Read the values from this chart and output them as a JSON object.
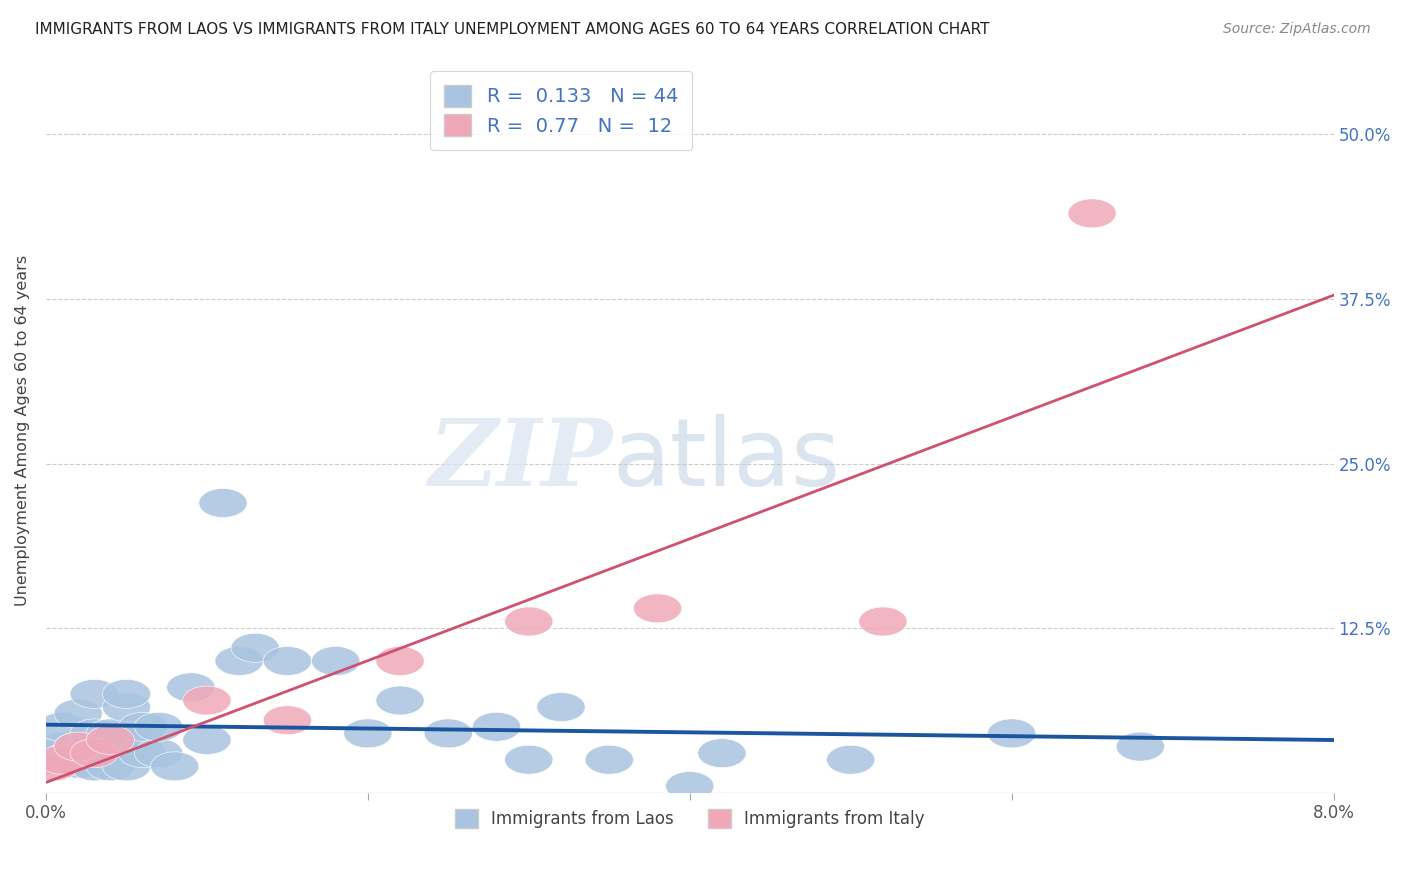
{
  "title": "IMMIGRANTS FROM LAOS VS IMMIGRANTS FROM ITALY UNEMPLOYMENT AMONG AGES 60 TO 64 YEARS CORRELATION CHART",
  "source": "Source: ZipAtlas.com",
  "ylabel": "Unemployment Among Ages 60 to 64 years",
  "xlim": [
    0.0,
    0.08
  ],
  "ylim": [
    0.0,
    0.55
  ],
  "xticks": [
    0.0,
    0.02,
    0.04,
    0.06,
    0.08
  ],
  "xticklabels": [
    "0.0%",
    "",
    "",
    "",
    "8.0%"
  ],
  "ytick_positions": [
    0.0,
    0.125,
    0.25,
    0.375,
    0.5
  ],
  "ytick_labels": [
    "",
    "12.5%",
    "25.0%",
    "37.5%",
    "50.0%"
  ],
  "laos_R": 0.133,
  "laos_N": 44,
  "italy_R": 0.77,
  "italy_N": 12,
  "laos_color": "#a8c4e0",
  "italy_color": "#f0a8b8",
  "laos_line_color": "#1a56a0",
  "italy_line_color": "#d05070",
  "watermark_zip": "ZIP",
  "watermark_atlas": "atlas",
  "laos_x": [
    0.0005,
    0.0008,
    0.001,
    0.001,
    0.0015,
    0.002,
    0.002,
    0.002,
    0.0025,
    0.003,
    0.003,
    0.003,
    0.003,
    0.0035,
    0.004,
    0.004,
    0.005,
    0.005,
    0.005,
    0.005,
    0.006,
    0.006,
    0.007,
    0.007,
    0.008,
    0.009,
    0.01,
    0.011,
    0.012,
    0.013,
    0.015,
    0.018,
    0.02,
    0.022,
    0.025,
    0.028,
    0.03,
    0.032,
    0.035,
    0.04,
    0.042,
    0.05,
    0.06,
    0.068
  ],
  "laos_y": [
    0.025,
    0.03,
    0.035,
    0.05,
    0.028,
    0.022,
    0.035,
    0.06,
    0.03,
    0.02,
    0.035,
    0.045,
    0.075,
    0.03,
    0.02,
    0.045,
    0.02,
    0.04,
    0.065,
    0.075,
    0.03,
    0.05,
    0.03,
    0.05,
    0.02,
    0.08,
    0.04,
    0.22,
    0.1,
    0.11,
    0.1,
    0.1,
    0.045,
    0.07,
    0.045,
    0.05,
    0.025,
    0.065,
    0.025,
    0.005,
    0.03,
    0.025,
    0.045,
    0.035
  ],
  "italy_x": [
    0.0005,
    0.001,
    0.002,
    0.003,
    0.004,
    0.01,
    0.015,
    0.022,
    0.03,
    0.038,
    0.052,
    0.065
  ],
  "italy_y": [
    0.02,
    0.025,
    0.035,
    0.03,
    0.04,
    0.07,
    0.055,
    0.1,
    0.13,
    0.14,
    0.13,
    0.44
  ]
}
